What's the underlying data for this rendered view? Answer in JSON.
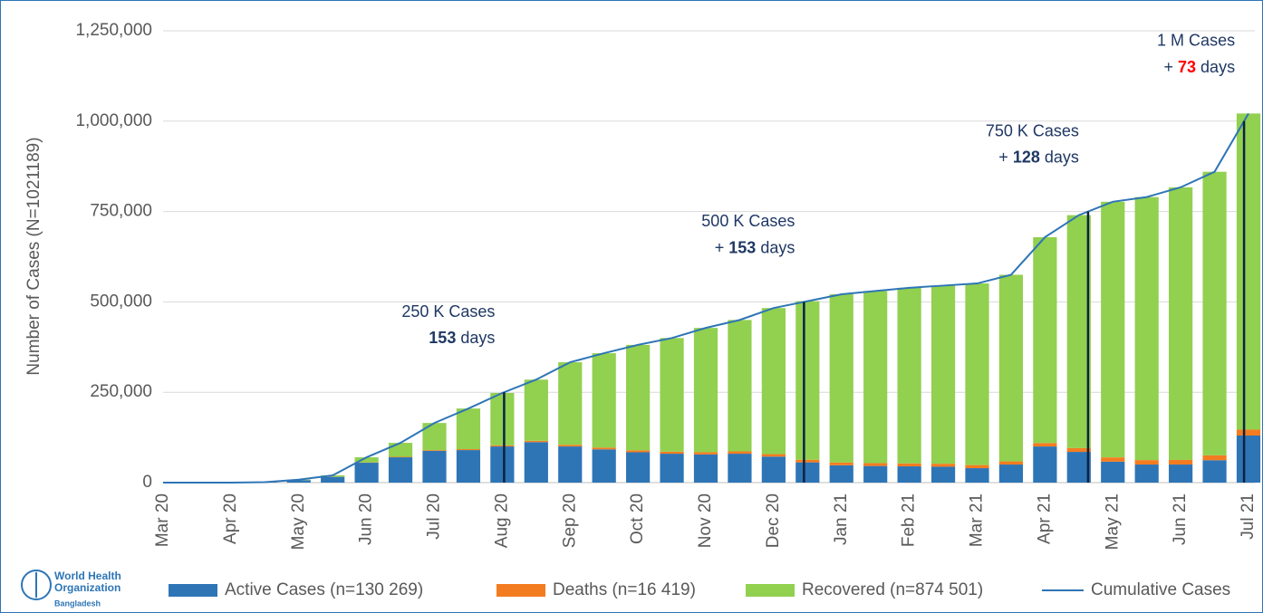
{
  "chart_data": {
    "type": "stacked_bar_line",
    "y_axis_label": "Number of Cases (N=1021189)",
    "categories": [
      "Mar 20",
      null,
      "Apr 20",
      null,
      "May 20",
      null,
      "Jun 20",
      null,
      "Jul 20",
      null,
      "Aug 20",
      null,
      "Sep 20",
      null,
      "Oct 20",
      null,
      "Nov 20",
      null,
      "Dec 20",
      null,
      "Jan 21",
      null,
      "Feb 21",
      null,
      "Mar 21",
      null,
      "Apr 21",
      null,
      "May 21",
      null,
      "Jun 21",
      null,
      "Jul 21"
    ],
    "series": [
      {
        "name": "Active Cases (n=130 269)",
        "color": "#2e75b6",
        "kind": "bar",
        "values": [
          0,
          5,
          20,
          1100,
          6800,
          15800,
          55000,
          70000,
          88000,
          90000,
          100000,
          112000,
          100000,
          92000,
          84000,
          80000,
          78000,
          80000,
          72000,
          56000,
          48000,
          46000,
          45000,
          44000,
          40000,
          50000,
          100000,
          85000,
          58000,
          50000,
          50000,
          62000,
          130269
        ]
      },
      {
        "name": "Deaths (n=16 419)",
        "color": "#f47c20",
        "kind": "bar",
        "values": [
          0,
          0,
          6,
          50,
          170,
          300,
          900,
          1400,
          2000,
          2600,
          3200,
          3700,
          4500,
          4900,
          5400,
          5700,
          6100,
          6400,
          6800,
          7300,
          7800,
          8000,
          8200,
          8300,
          8500,
          8700,
          9500,
          10500,
          11800,
          12300,
          12700,
          13500,
          16419
        ]
      },
      {
        "name": "Recovered (n=874 501)",
        "color": "#92d050",
        "kind": "bar",
        "values": [
          0,
          0,
          28,
          81,
          1268,
          3965,
          14100,
          38600,
          75000,
          112400,
          144800,
          169300,
          228500,
          261100,
          291600,
          314300,
          343900,
          363600,
          404200,
          438700,
          465200,
          476000,
          485800,
          492700,
          502500,
          516300,
          569500,
          644500,
          707200,
          727700,
          754300,
          784500,
          874501
        ]
      },
      {
        "name": "Cumulative Cases",
        "color": "#2e75b6",
        "kind": "line",
        "values": [
          0,
          5,
          54,
          1231,
          8238,
          20065,
          70000,
          110000,
          165000,
          205000,
          248000,
          285000,
          333000,
          358000,
          381000,
          400000,
          428000,
          450000,
          483000,
          502000,
          521000,
          530000,
          539000,
          545000,
          551000,
          575000,
          679000,
          740000,
          777000,
          790000,
          817000,
          860000,
          1021189
        ]
      }
    ],
    "ylim": [
      0,
      1250000
    ],
    "yticks": [
      0,
      {
        "value": 250000,
        "label": "250,000"
      },
      {
        "value": 500000,
        "label": "500,000"
      },
      {
        "value": 750000,
        "label": "750,000"
      },
      {
        "value": 1000000,
        "label": "1,000,000"
      },
      {
        "value": 1250000,
        "label": "1,250,000"
      }
    ],
    "grid": true,
    "milestone_color": "#0d2240",
    "annotations": [
      {
        "value": 250000,
        "title": "250 K Cases",
        "days": 153,
        "unit": "days"
      },
      {
        "value": 500000,
        "title": "500 K Cases",
        "prefix": "+",
        "days": 153,
        "unit": "days"
      },
      {
        "value": 750000,
        "title": "750 K Cases",
        "prefix": "+",
        "days": 128,
        "unit": "days"
      },
      {
        "value": 1000000,
        "title": "1 M Cases",
        "prefix": "+",
        "days": 73,
        "unit": "days",
        "days_color": "#ff0000"
      }
    ],
    "legend": "bottom"
  },
  "logo": {
    "line1": "World Health",
    "line2": "Organization",
    "line3": "Bangladesh"
  }
}
